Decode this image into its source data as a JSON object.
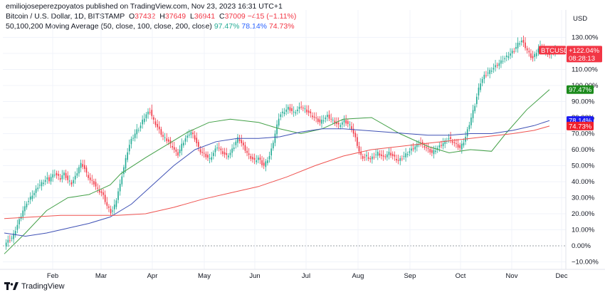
{
  "header": {
    "published_line": "emiliojoseperezpoyatos published on TradingView.com, Nov 23, 2023 16:31 UTC+1",
    "symbol_line": "Bitcoin / U.S. Dollar, 1D, BITSTAMP",
    "ohlc": [
      {
        "label": "O",
        "value": "37432"
      },
      {
        "label": "H",
        "value": "37649"
      },
      {
        "label": "L",
        "value": "36941"
      },
      {
        "label": "C",
        "value": "37009"
      }
    ],
    "change": "−415 (−1.11%)",
    "ma_line": "50,100,200 Moving Average (50, close, 100, close, 200, close)",
    "ma_values": [
      "97.47%",
      "78.14%",
      "74.73%"
    ]
  },
  "footer": {
    "brand": "TradingView"
  },
  "colors": {
    "up": "#22ab94",
    "down": "#f23645",
    "ma50": "#43a047",
    "ma100": "#3f51b5",
    "ma200": "#ef5350",
    "ma50_tag": "#1b8a1b",
    "ma100_tag": "#1c1cf0",
    "ma200_tag": "#f0202c"
  },
  "chart_data": {
    "type": "candlestick",
    "scale": "percent",
    "currency_label": "USD",
    "y_ticks": [
      "130.00%",
      "120.00%",
      "110.00%",
      "100.00%",
      "90.00%",
      "80.00%",
      "70.00%",
      "60.00%",
      "50.00%",
      "40.00%",
      "30.00%",
      "20.00%",
      "10.00%",
      "0.00%",
      "−10.00%"
    ],
    "ylim": [
      -15,
      133
    ],
    "x_ticks": [
      "Feb",
      "Mar",
      "Apr",
      "May",
      "Jun",
      "Jul",
      "Aug",
      "Sep",
      "Oct",
      "Nov",
      "Dec"
    ],
    "price_tag": {
      "label": "BTCUSD",
      "change": "+122.04%",
      "countdown": "08:28:13",
      "value": 122.04
    },
    "ma_tags": [
      {
        "name": "ma50",
        "label": "97.47%",
        "value": 97.47
      },
      {
        "name": "ma100",
        "label": "78.14%",
        "value": 78.14
      },
      {
        "name": "ma200",
        "label": "74.73%",
        "value": 74.73
      }
    ],
    "closes": [
      0,
      2,
      3,
      4,
      5,
      7,
      10,
      13,
      16,
      19,
      22,
      24,
      27,
      28,
      30,
      32,
      33,
      35,
      37,
      38,
      39,
      40,
      41,
      42,
      41,
      43,
      44,
      45,
      44,
      43,
      42,
      44,
      45,
      43,
      41,
      40,
      39,
      41,
      43,
      46,
      49,
      51,
      50,
      48,
      45,
      43,
      41,
      40,
      39,
      37,
      35,
      34,
      33,
      31,
      28,
      25,
      23,
      21,
      22,
      25,
      29,
      34,
      38,
      44,
      49,
      54,
      59,
      63,
      66,
      68,
      70,
      72,
      73,
      75,
      78,
      80,
      82,
      83,
      84,
      81,
      78,
      76,
      74,
      72,
      70,
      68,
      67,
      66,
      65,
      63,
      62,
      60,
      58,
      57,
      60,
      63,
      65,
      67,
      68,
      70,
      71,
      69,
      67,
      64,
      61,
      59,
      58,
      57,
      56,
      55,
      54,
      56,
      58,
      60,
      62,
      61,
      59,
      58,
      57,
      56,
      57,
      58,
      60,
      62,
      65,
      67,
      66,
      64,
      62,
      60,
      58,
      56,
      55,
      54,
      53,
      54,
      55,
      53,
      51,
      50,
      52,
      54,
      56,
      60,
      65,
      70,
      75,
      80,
      82,
      83,
      84,
      85,
      86,
      85,
      84,
      83,
      84,
      85,
      86,
      87,
      86,
      85,
      84,
      83,
      82,
      81,
      80,
      79,
      78,
      77,
      78,
      79,
      80,
      81,
      80,
      79,
      78,
      77,
      76,
      75,
      76,
      77,
      78,
      77,
      76,
      75,
      73,
      70,
      67,
      63,
      59,
      56,
      55,
      55,
      56,
      55,
      54,
      55,
      56,
      57,
      58,
      57,
      56,
      55,
      56,
      57,
      58,
      57,
      56,
      55,
      54,
      53,
      54,
      55,
      56,
      57,
      58,
      59,
      60,
      61,
      62,
      63,
      64,
      64,
      63,
      62,
      61,
      60,
      59,
      58,
      59,
      60,
      61,
      62,
      63,
      64,
      65,
      66,
      67,
      66,
      65,
      64,
      63,
      62,
      61,
      63,
      65,
      68,
      72,
      76,
      80,
      84,
      88,
      93,
      98,
      102,
      104,
      106,
      107,
      108,
      109,
      110,
      111,
      112,
      113,
      114,
      115,
      116,
      117,
      118,
      119,
      120,
      121,
      122,
      124,
      126,
      127,
      128,
      126,
      124,
      122,
      120,
      118,
      117,
      119,
      121,
      123,
      124,
      123,
      122,
      121,
      120,
      119,
      120,
      121,
      122.04
    ],
    "ma50": [
      [
        0,
        -5
      ],
      [
        30,
        8
      ],
      [
        60,
        22
      ],
      [
        90,
        30
      ],
      [
        120,
        32
      ],
      [
        150,
        38
      ],
      [
        165,
        45
      ],
      [
        200,
        55
      ],
      [
        230,
        63
      ],
      [
        260,
        71
      ],
      [
        290,
        77
      ],
      [
        320,
        79
      ],
      [
        360,
        77
      ],
      [
        390,
        73
      ],
      [
        420,
        70
      ],
      [
        450,
        73
      ],
      [
        480,
        79
      ],
      [
        520,
        80
      ],
      [
        560,
        70
      ],
      [
        600,
        62
      ],
      [
        630,
        58
      ],
      [
        660,
        60
      ],
      [
        690,
        59
      ],
      [
        710,
        70
      ],
      [
        740,
        85
      ],
      [
        772,
        97.47
      ]
    ],
    "ma100": [
      [
        0,
        8
      ],
      [
        30,
        6
      ],
      [
        60,
        8
      ],
      [
        90,
        11
      ],
      [
        120,
        14
      ],
      [
        150,
        18
      ],
      [
        180,
        26
      ],
      [
        210,
        38
      ],
      [
        240,
        50
      ],
      [
        270,
        60
      ],
      [
        300,
        65
      ],
      [
        330,
        67
      ],
      [
        360,
        67
      ],
      [
        390,
        68
      ],
      [
        420,
        71
      ],
      [
        450,
        73
      ],
      [
        480,
        73
      ],
      [
        510,
        72
      ],
      [
        540,
        71
      ],
      [
        570,
        70
      ],
      [
        600,
        69
      ],
      [
        630,
        69
      ],
      [
        660,
        70
      ],
      [
        690,
        70
      ],
      [
        720,
        72
      ],
      [
        750,
        75
      ],
      [
        772,
        78.14
      ]
    ],
    "ma200": [
      [
        0,
        17
      ],
      [
        40,
        18
      ],
      [
        80,
        19
      ],
      [
        120,
        19
      ],
      [
        160,
        19
      ],
      [
        200,
        20
      ],
      [
        240,
        24
      ],
      [
        280,
        29
      ],
      [
        320,
        33
      ],
      [
        360,
        37
      ],
      [
        400,
        43
      ],
      [
        440,
        50
      ],
      [
        480,
        56
      ],
      [
        520,
        60
      ],
      [
        560,
        62
      ],
      [
        600,
        64
      ],
      [
        640,
        66
      ],
      [
        680,
        68
      ],
      [
        720,
        70
      ],
      [
        750,
        72
      ],
      [
        772,
        74.73
      ]
    ]
  }
}
